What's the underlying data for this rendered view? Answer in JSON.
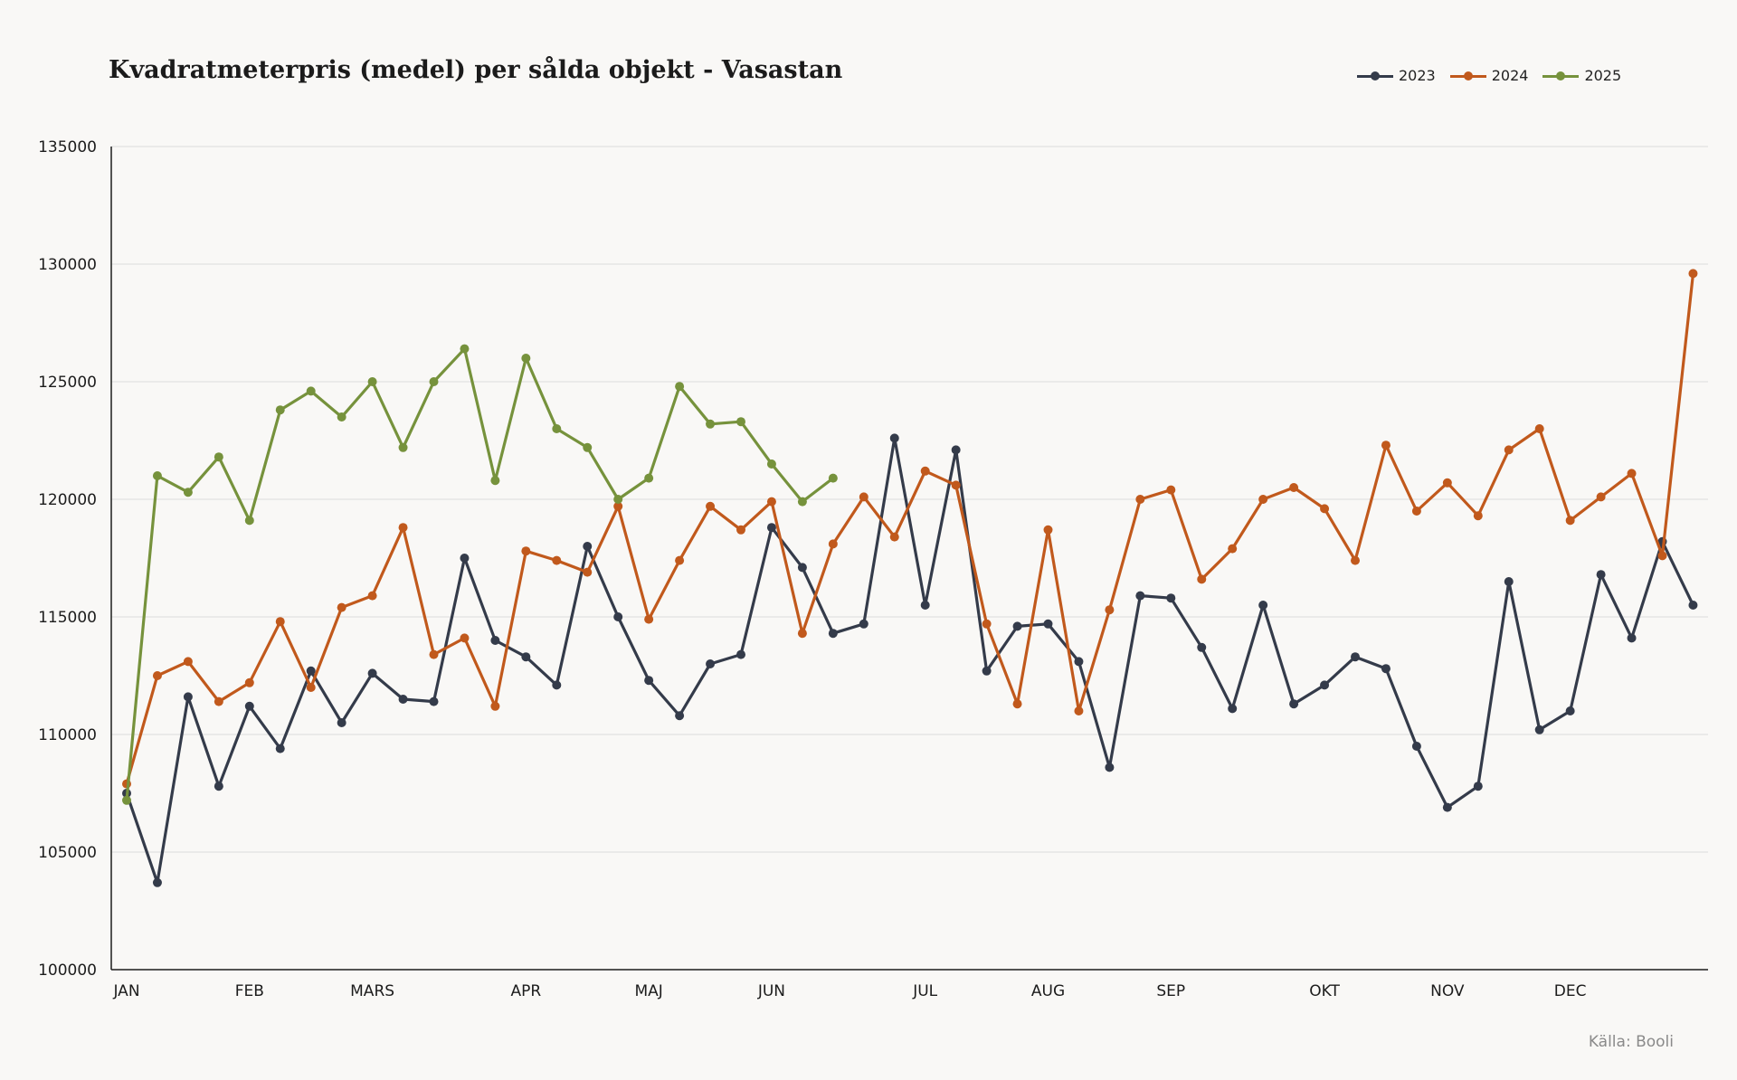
{
  "chart_data": {
    "type": "line",
    "title": "Kvadratmeterpris (medel) per sålda objekt - Vasastan",
    "xlabel": "",
    "ylabel": "",
    "ylim": [
      100000,
      135000
    ],
    "yticks": [
      "100000",
      "105000",
      "110000",
      "115000",
      "120000",
      "125000",
      "130000",
      "135000"
    ],
    "month_ticks": [
      {
        "label": "JAN",
        "index": 0
      },
      {
        "label": "FEB",
        "index": 4
      },
      {
        "label": "MARS",
        "index": 8
      },
      {
        "label": "APR",
        "index": 13
      },
      {
        "label": "MAJ",
        "index": 17
      },
      {
        "label": "JUN",
        "index": 21
      },
      {
        "label": "JUL",
        "index": 26
      },
      {
        "label": "AUG",
        "index": 30
      },
      {
        "label": "SEP",
        "index": 34
      },
      {
        "label": "OKT",
        "index": 39
      },
      {
        "label": "NOV",
        "index": 43
      },
      {
        "label": "DEC",
        "index": 47
      }
    ],
    "grid": true,
    "legend_position": "top-right",
    "series": [
      {
        "name": "2023",
        "color": "#343b4a",
        "values": [
          107500,
          103700,
          111600,
          107800,
          111200,
          109400,
          112700,
          110500,
          112600,
          111500,
          111400,
          117500,
          114000,
          113300,
          112100,
          118000,
          115000,
          112300,
          110800,
          113000,
          113400,
          118800,
          117100,
          114300,
          114700,
          122600,
          115500,
          122100,
          112700,
          114600,
          114700,
          113100,
          108600,
          115900,
          115800,
          113700,
          111100,
          115500,
          111300,
          112100,
          113300,
          112800,
          109500,
          106900,
          107800,
          116500,
          110200,
          111000,
          116800,
          114100,
          118200,
          115500
        ]
      },
      {
        "name": "2024",
        "color": "#c1591c",
        "values": [
          107900,
          112500,
          113100,
          111400,
          112200,
          114800,
          112000,
          115400,
          115900,
          118800,
          113400,
          114100,
          111200,
          117800,
          117400,
          116900,
          119700,
          114900,
          117400,
          119700,
          118700,
          119900,
          114300,
          118100,
          120100,
          118400,
          121200,
          120600,
          114700,
          111300,
          118700,
          111000,
          115300,
          120000,
          120400,
          116600,
          117900,
          120000,
          120500,
          119600,
          117400,
          122300,
          119500,
          120700,
          119300,
          122100,
          123000,
          119100,
          120100,
          121100,
          117600,
          129600
        ]
      },
      {
        "name": "2025",
        "color": "#76923c",
        "values": [
          107200,
          121000,
          120300,
          121800,
          119100,
          123800,
          124600,
          123500,
          125000,
          122200,
          125000,
          126400,
          120800,
          126000,
          123000,
          122200,
          120000,
          120900,
          124800,
          123200,
          123300,
          121500,
          119900,
          120900
        ]
      }
    ],
    "source": "Källa: Booli"
  }
}
